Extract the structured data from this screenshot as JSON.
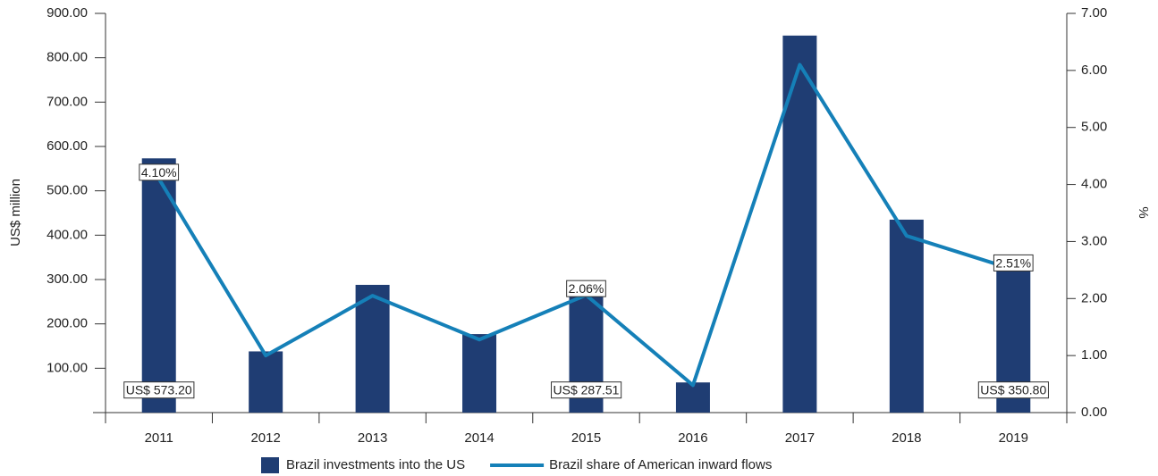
{
  "chart_data": {
    "type": "bar_line",
    "categories": [
      "2011",
      "2012",
      "2013",
      "2014",
      "2015",
      "2016",
      "2017",
      "2018",
      "2019"
    ],
    "series": [
      {
        "name": "Brazil investments into the US",
        "type": "bar",
        "color": "#1f3d73",
        "values": [
          573.2,
          138,
          288,
          177,
          287.51,
          68,
          850,
          435,
          350.8
        ],
        "value_labels": [
          "US$ 573.20",
          null,
          null,
          null,
          "US$ 287.51",
          null,
          null,
          null,
          "US$ 350.80"
        ]
      },
      {
        "name": "Brazil share of American inward flows",
        "type": "line",
        "axis": "y2",
        "color": "#1580b8",
        "values": [
          4.1,
          1.0,
          2.05,
          1.28,
          2.06,
          0.48,
          6.1,
          3.1,
          2.51
        ],
        "value_labels": [
          "4.10%",
          null,
          null,
          null,
          "2.06%",
          null,
          null,
          null,
          "2.51%"
        ]
      }
    ],
    "ylabel": "US$ million",
    "y2label": "%",
    "ylim": [
      0,
      900
    ],
    "yticks": [
      {
        "value": 100,
        "label": "100.00"
      },
      {
        "value": 200,
        "label": "200.00"
      },
      {
        "value": 300,
        "label": "300.00"
      },
      {
        "value": 400,
        "label": "400.00"
      },
      {
        "value": 500,
        "label": "500.00"
      },
      {
        "value": 600,
        "label": "600.00"
      },
      {
        "value": 700,
        "label": "700.00"
      },
      {
        "value": 800,
        "label": "800.00"
      },
      {
        "value": 900,
        "label": "900.00"
      }
    ],
    "y2lim": [
      0,
      7
    ],
    "y2ticks": [
      {
        "value": 0,
        "label": "0.00"
      },
      {
        "value": 1,
        "label": "1.00"
      },
      {
        "value": 2,
        "label": "2.00"
      },
      {
        "value": 3,
        "label": "3.00"
      },
      {
        "value": 4,
        "label": "4.00"
      },
      {
        "value": 5,
        "label": "5.00"
      },
      {
        "value": 6,
        "label": "6.00"
      },
      {
        "value": 7,
        "label": "7.00"
      }
    ],
    "legend": "bottom"
  }
}
